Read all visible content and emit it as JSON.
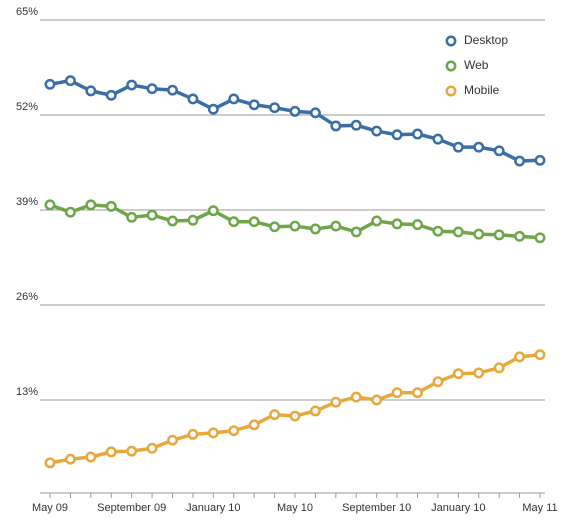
{
  "chart_data": {
    "type": "line",
    "categories": [
      "May 09",
      null,
      null,
      null,
      "September 09",
      null,
      null,
      null,
      "January 10",
      null,
      null,
      null,
      "May 10",
      null,
      null,
      null,
      "September 10",
      null,
      null,
      null,
      "January 10",
      null,
      null,
      null,
      "May 11"
    ],
    "series": [
      {
        "name": "Desktop",
        "color": "#3a6ea5",
        "values": [
          56.2,
          56.7,
          55.3,
          54.7,
          56.1,
          55.6,
          55.4,
          54.2,
          52.8,
          54.2,
          53.4,
          53.0,
          52.5,
          52.3,
          50.5,
          50.6,
          49.8,
          49.3,
          49.4,
          48.7,
          47.6,
          47.6,
          47.1,
          45.7,
          45.8
        ]
      },
      {
        "name": "Web",
        "color": "#6fa64a",
        "values": [
          39.7,
          38.7,
          39.7,
          39.5,
          38.0,
          38.3,
          37.5,
          37.6,
          38.9,
          37.4,
          37.4,
          36.7,
          36.8,
          36.4,
          36.8,
          36.0,
          37.5,
          37.1,
          37.0,
          36.1,
          36.0,
          35.7,
          35.6,
          35.4,
          35.2
        ]
      },
      {
        "name": "Mobile",
        "color": "#e8a83e",
        "values": [
          4.4,
          4.9,
          5.2,
          5.9,
          6.0,
          6.4,
          7.5,
          8.3,
          8.5,
          8.8,
          9.6,
          11.0,
          10.8,
          11.5,
          12.7,
          13.4,
          13.0,
          14.0,
          14.0,
          15.5,
          16.6,
          16.7,
          17.4,
          18.9,
          19.2
        ]
      }
    ],
    "ylim": [
      0,
      65
    ],
    "yticks": [
      {
        "value": 13,
        "label": "13%"
      },
      {
        "value": 26,
        "label": "26%"
      },
      {
        "value": 39,
        "label": "39%"
      },
      {
        "value": 52,
        "label": "52%"
      },
      {
        "value": 65,
        "label": "65%"
      }
    ],
    "grid": true,
    "legend": "top-right"
  }
}
